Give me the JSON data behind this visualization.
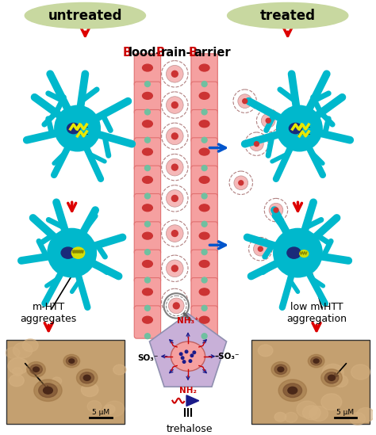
{
  "bg_color": "#ffffff",
  "untreated_label": "untreated",
  "treated_label": "treated",
  "neuron_color": "#00b8cc",
  "nucleus_color": "#1a2b7a",
  "bbb_cell_color": "#f5a0a0",
  "bbb_cell_border": "#e07070",
  "rbc_color": "#cc3333",
  "junction_color": "#70c0a0",
  "np_fill": "#f5b8b8",
  "np_dot_edge": "#c09090",
  "arrow_red": "#dd0000",
  "arrow_blue": "#0055cc",
  "label_oval_color": "#c8d8a0",
  "yellow_agg": "#e8e800",
  "black_line": "#111111",
  "pent_color": "#c8b0d8",
  "pent_border": "#9090b0",
  "sphere_color": "#f5a0a0",
  "sphere_border": "#c06060",
  "spike_color": "#1a1a8a",
  "m_htt_text": "m-HTT\naggregates",
  "low_htt_text": "low m-HTT\naggregation",
  "trehalose_text": "trehalose",
  "scale_bar_text": "5 μM",
  "bbb_text_parts": [
    [
      "B",
      "#cc0000"
    ],
    [
      "lood-",
      "#000000"
    ],
    [
      "B",
      "#cc0000"
    ],
    [
      "rain-",
      "#000000"
    ],
    [
      "B",
      "#cc0000"
    ],
    [
      "arrier",
      "#000000"
    ]
  ]
}
